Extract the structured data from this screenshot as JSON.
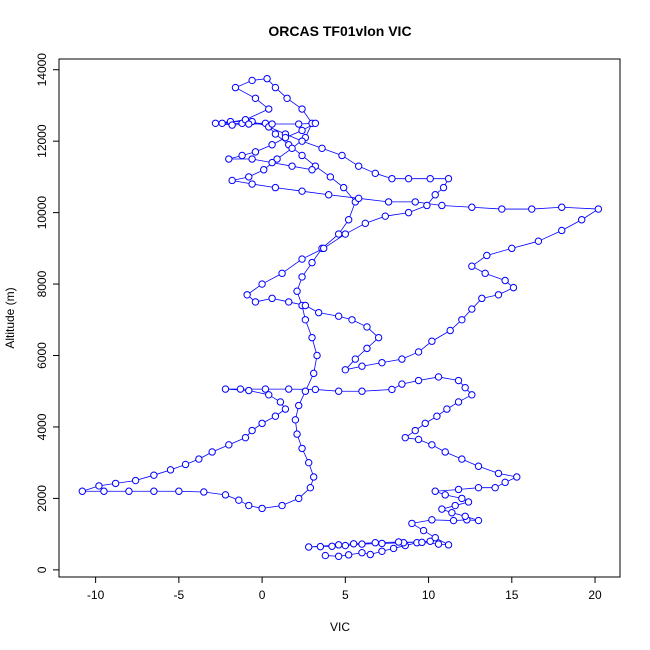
{
  "chart_data": {
    "type": "scatter",
    "title": "ORCAS TF01vlon VIC",
    "xlabel": "VIC",
    "ylabel": "Altitude (m)",
    "xlim": [
      -12.2,
      21.5
    ],
    "ylim": [
      -200,
      14300
    ],
    "x_ticks": [
      -10,
      -5,
      0,
      5,
      10,
      15,
      20
    ],
    "y_ticks": [
      0,
      2000,
      4000,
      6000,
      8000,
      10000,
      12000,
      14000
    ],
    "grid": false,
    "legend": "none",
    "marker": "open-circle",
    "color": "#0000ff",
    "connected_by_line": true,
    "series": [
      {
        "points": [
          [
            3.8,
            400
          ],
          [
            4.6,
            380
          ],
          [
            5.2,
            420
          ],
          [
            6.0,
            480
          ],
          [
            6.5,
            430
          ],
          [
            7.2,
            520
          ],
          [
            7.9,
            600
          ],
          [
            8.6,
            680
          ],
          [
            9.3,
            760
          ],
          [
            10.1,
            800
          ],
          [
            8.5,
            760
          ],
          [
            7.2,
            740
          ],
          [
            6.0,
            720
          ],
          [
            5.0,
            680
          ],
          [
            4.2,
            660
          ],
          [
            3.5,
            650
          ],
          [
            2.8,
            640
          ],
          [
            4.6,
            700
          ],
          [
            5.5,
            730
          ],
          [
            6.8,
            760
          ],
          [
            8.2,
            780
          ],
          [
            9.6,
            770
          ],
          [
            10.6,
            720
          ],
          [
            11.2,
            700
          ],
          [
            10.4,
            900
          ],
          [
            9.7,
            1100
          ],
          [
            9.0,
            1300
          ],
          [
            10.2,
            1400
          ],
          [
            11.5,
            1380
          ],
          [
            12.3,
            1400
          ],
          [
            13.0,
            1380
          ],
          [
            12.2,
            1500
          ],
          [
            11.4,
            1600
          ],
          [
            10.8,
            1700
          ],
          [
            11.6,
            1800
          ],
          [
            12.4,
            1900
          ],
          [
            12.0,
            2000
          ],
          [
            11.0,
            2100
          ],
          [
            10.4,
            2200
          ],
          [
            11.8,
            2250
          ],
          [
            13.0,
            2300
          ],
          [
            14.0,
            2300
          ],
          [
            14.6,
            2450
          ],
          [
            15.3,
            2600
          ],
          [
            14.2,
            2700
          ],
          [
            13.0,
            2900
          ],
          [
            12.0,
            3100
          ],
          [
            11.0,
            3300
          ],
          [
            10.2,
            3500
          ],
          [
            9.4,
            3650
          ],
          [
            8.6,
            3700
          ],
          [
            9.2,
            3900
          ],
          [
            9.8,
            4100
          ],
          [
            10.5,
            4300
          ],
          [
            11.1,
            4500
          ],
          [
            11.8,
            4700
          ],
          [
            12.6,
            4900
          ],
          [
            12.2,
            5100
          ],
          [
            11.8,
            5300
          ],
          [
            10.6,
            5400
          ],
          [
            9.4,
            5300
          ],
          [
            8.4,
            5200
          ],
          [
            7.8,
            5050
          ],
          [
            6.0,
            5000
          ],
          [
            4.6,
            5000
          ],
          [
            3.2,
            5050
          ],
          [
            1.6,
            5060
          ],
          [
            0.2,
            5060
          ],
          [
            -1.3,
            5060
          ],
          [
            -2.2,
            5060
          ],
          [
            -0.8,
            5020
          ],
          [
            0.4,
            4900
          ],
          [
            1.1,
            4700
          ],
          [
            1.4,
            4500
          ],
          [
            0.8,
            4300
          ],
          [
            0.0,
            4100
          ],
          [
            -0.6,
            3900
          ],
          [
            -1.0,
            3700
          ],
          [
            -2.0,
            3500
          ],
          [
            -3.0,
            3300
          ],
          [
            -3.8,
            3100
          ],
          [
            -4.6,
            2950
          ],
          [
            -5.5,
            2800
          ],
          [
            -6.5,
            2650
          ],
          [
            -7.6,
            2500
          ],
          [
            -8.8,
            2420
          ],
          [
            -9.8,
            2350
          ],
          [
            -10.8,
            2200
          ],
          [
            -9.5,
            2200
          ],
          [
            -8.0,
            2200
          ],
          [
            -6.5,
            2200
          ],
          [
            -5.0,
            2200
          ],
          [
            -3.5,
            2180
          ],
          [
            -2.2,
            2100
          ],
          [
            -1.4,
            1950
          ],
          [
            -0.8,
            1800
          ],
          [
            0.0,
            1720
          ],
          [
            1.2,
            1800
          ],
          [
            2.2,
            2000
          ],
          [
            2.9,
            2300
          ],
          [
            3.1,
            2600
          ],
          [
            2.8,
            3000
          ],
          [
            2.4,
            3400
          ],
          [
            2.1,
            3800
          ],
          [
            2.0,
            4200
          ],
          [
            2.2,
            4600
          ],
          [
            2.6,
            5000
          ],
          [
            3.1,
            5500
          ],
          [
            3.3,
            6000
          ],
          [
            3.0,
            6500
          ],
          [
            2.6,
            7000
          ],
          [
            2.4,
            7400
          ],
          [
            2.1,
            7800
          ],
          [
            2.4,
            8200
          ],
          [
            3.0,
            8600
          ],
          [
            3.6,
            9000
          ],
          [
            4.6,
            9400
          ],
          [
            5.2,
            9800
          ],
          [
            5.6,
            10300
          ],
          [
            4.9,
            10700
          ],
          [
            4.1,
            11000
          ],
          [
            3.2,
            11300
          ],
          [
            2.4,
            11600
          ],
          [
            1.6,
            11900
          ],
          [
            0.8,
            12200
          ],
          [
            0.2,
            12500
          ],
          [
            -1.2,
            12500
          ],
          [
            -2.4,
            12500
          ],
          [
            -1.0,
            12600
          ],
          [
            0.4,
            12900
          ],
          [
            -0.4,
            13200
          ],
          [
            -1.6,
            13500
          ],
          [
            -0.6,
            13700
          ],
          [
            0.3,
            13750
          ],
          [
            0.8,
            13500
          ],
          [
            1.5,
            13200
          ],
          [
            2.4,
            12900
          ],
          [
            3.0,
            12500
          ],
          [
            2.6,
            12100
          ],
          [
            1.8,
            11800
          ],
          [
            0.9,
            11500
          ],
          [
            0.1,
            11200
          ],
          [
            -0.8,
            11000
          ],
          [
            -1.8,
            10900
          ],
          [
            -0.6,
            10800
          ],
          [
            0.8,
            10700
          ],
          [
            2.4,
            10600
          ],
          [
            4.0,
            10500
          ],
          [
            5.8,
            10400
          ],
          [
            7.6,
            10300
          ],
          [
            9.2,
            10300
          ],
          [
            10.8,
            10200
          ],
          [
            12.6,
            10150
          ],
          [
            14.4,
            10100
          ],
          [
            16.2,
            10100
          ],
          [
            18.0,
            10150
          ],
          [
            20.2,
            10100
          ],
          [
            19.2,
            9800
          ],
          [
            18.0,
            9500
          ],
          [
            16.6,
            9200
          ],
          [
            15.0,
            9000
          ],
          [
            13.5,
            8800
          ],
          [
            12.6,
            8500
          ],
          [
            13.4,
            8300
          ],
          [
            14.6,
            8100
          ],
          [
            15.1,
            7900
          ],
          [
            14.2,
            7700
          ],
          [
            13.2,
            7600
          ],
          [
            12.6,
            7300
          ],
          [
            12.0,
            7000
          ],
          [
            11.3,
            6700
          ],
          [
            10.2,
            6400
          ],
          [
            9.4,
            6100
          ],
          [
            8.4,
            5900
          ],
          [
            7.2,
            5800
          ],
          [
            6.0,
            5700
          ],
          [
            5.0,
            5600
          ],
          [
            5.6,
            5900
          ],
          [
            6.3,
            6200
          ],
          [
            7.0,
            6500
          ],
          [
            6.3,
            6800
          ],
          [
            5.4,
            7000
          ],
          [
            4.6,
            7100
          ],
          [
            3.4,
            7200
          ],
          [
            2.6,
            7400
          ],
          [
            1.6,
            7500
          ],
          [
            0.6,
            7600
          ],
          [
            -0.4,
            7500
          ],
          [
            -0.9,
            7700
          ],
          [
            0.0,
            8000
          ],
          [
            1.2,
            8300
          ],
          [
            2.4,
            8700
          ],
          [
            3.7,
            9000
          ],
          [
            5.0,
            9400
          ],
          [
            6.2,
            9700
          ],
          [
            7.4,
            9900
          ],
          [
            8.8,
            10000
          ],
          [
            9.9,
            10200
          ],
          [
            10.4,
            10500
          ],
          [
            10.9,
            10700
          ],
          [
            11.2,
            10950
          ],
          [
            10.1,
            10950
          ],
          [
            8.8,
            10950
          ],
          [
            7.8,
            10950
          ],
          [
            6.8,
            11100
          ],
          [
            5.8,
            11300
          ],
          [
            4.8,
            11600
          ],
          [
            3.6,
            11800
          ],
          [
            2.4,
            12000
          ],
          [
            1.4,
            12200
          ],
          [
            0.4,
            12400
          ],
          [
            -0.6,
            12550
          ],
          [
            -1.9,
            12550
          ],
          [
            -2.8,
            12500
          ],
          [
            -1.8,
            12450
          ],
          [
            -0.8,
            12480
          ],
          [
            0.6,
            12480
          ],
          [
            2.2,
            12480
          ],
          [
            3.2,
            12500
          ],
          [
            2.4,
            12300
          ],
          [
            1.4,
            12100
          ],
          [
            0.6,
            11900
          ],
          [
            -0.4,
            11700
          ],
          [
            -1.2,
            11600
          ],
          [
            -2.0,
            11500
          ],
          [
            -0.6,
            11500
          ],
          [
            0.6,
            11400
          ],
          [
            1.8,
            11300
          ],
          [
            3.0,
            11200
          ]
        ]
      }
    ]
  }
}
